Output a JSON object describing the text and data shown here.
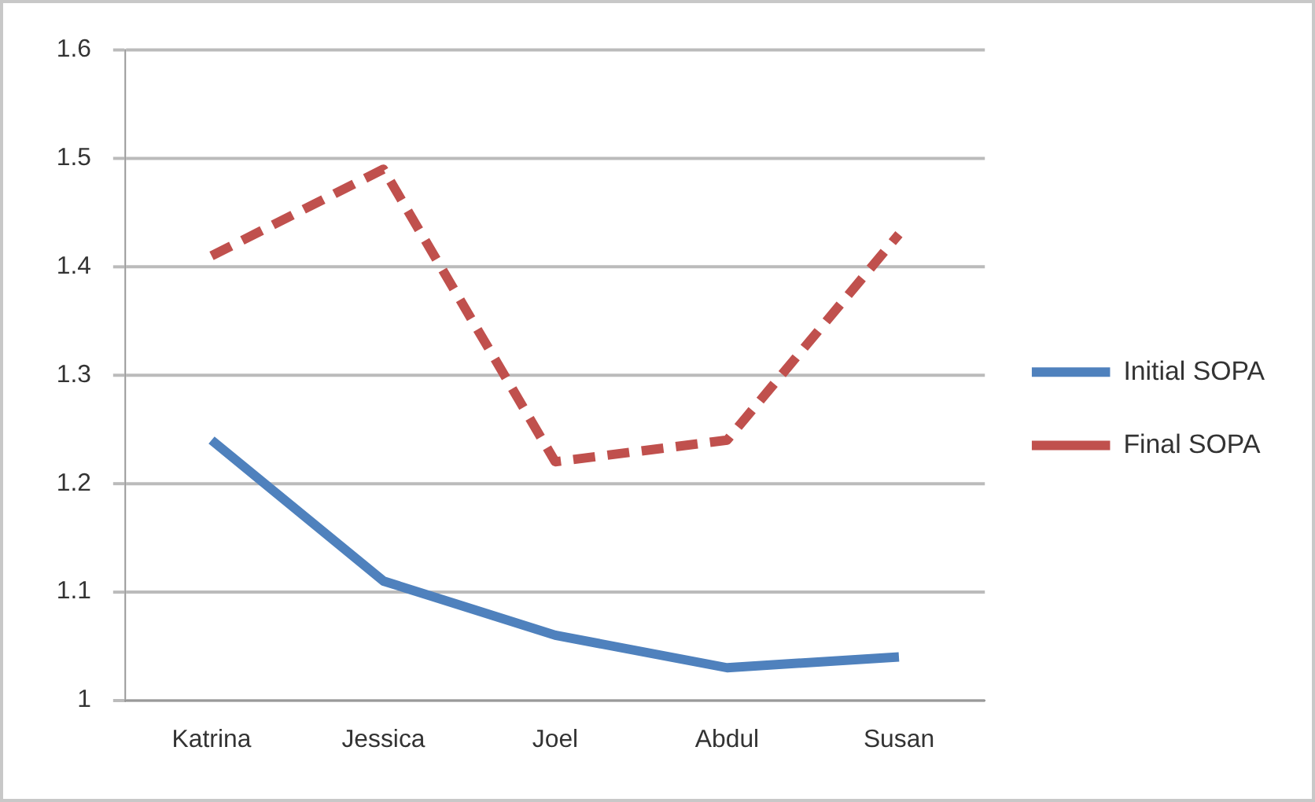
{
  "chart_data": {
    "type": "line",
    "categories": [
      "Katrina",
      "Jessica",
      "Joel",
      "Abdul",
      "Susan"
    ],
    "series": [
      {
        "name": "Initial SOPA",
        "color": "#4f81bd",
        "values": [
          1.24,
          1.11,
          1.06,
          1.03,
          1.04
        ],
        "line_style": "solid"
      },
      {
        "name": "Final SOPA",
        "color": "#c0504d",
        "values": [
          1.41,
          1.49,
          1.22,
          1.24,
          1.43
        ],
        "line_style": "dashed"
      }
    ],
    "ylim": [
      1,
      1.6
    ],
    "yticks": [
      1,
      1.1,
      1.2,
      1.3,
      1.4,
      1.5,
      1.6
    ],
    "grid": "y",
    "legend": "right",
    "marker": "none"
  }
}
